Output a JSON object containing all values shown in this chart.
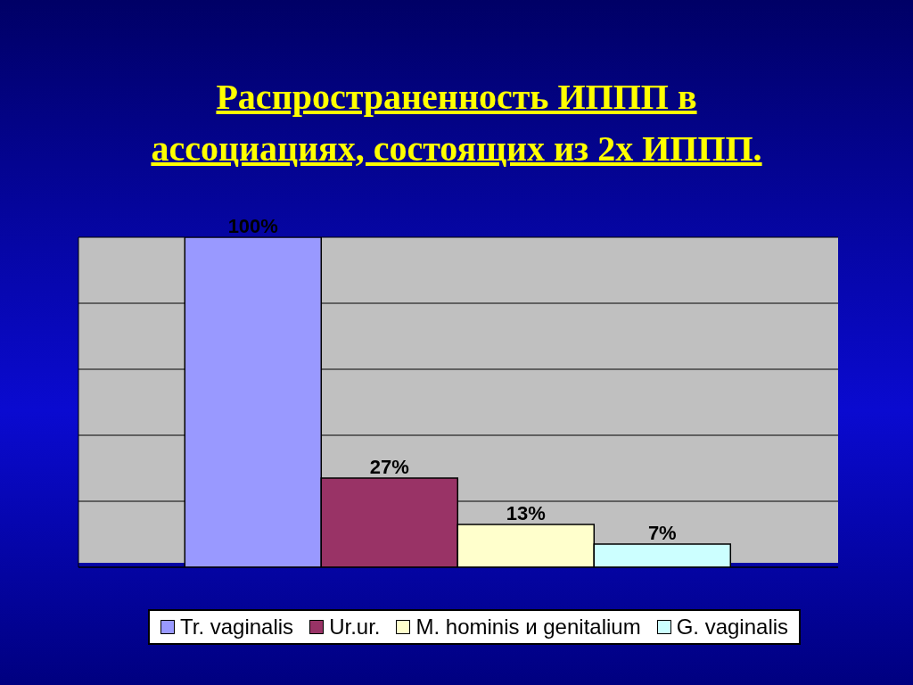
{
  "chart_data": {
    "type": "bar",
    "title": "Распространенность ИППП в ассоциациях, состоящих из 2х ИППП.",
    "categories": [
      null
    ],
    "series": [
      {
        "name": "Tr. vaginalis",
        "color": "#9999ff",
        "values": [
          100
        ],
        "value_labels": [
          "100%"
        ]
      },
      {
        "name": "Ur.ur.",
        "color": "#993366",
        "values": [
          27
        ],
        "value_labels": [
          "27%"
        ]
      },
      {
        "name": "M. hominis и genitalium",
        "color": "#ffffcc",
        "values": [
          13
        ],
        "value_labels": [
          "13%"
        ]
      },
      {
        "name": "G.  vaginalis",
        "color": "#ccffff",
        "values": [
          7
        ],
        "value_labels": [
          "7%"
        ]
      }
    ],
    "ylim": [
      0,
      100
    ],
    "grid": "y",
    "tick_labels": false,
    "legend": "bottom"
  }
}
